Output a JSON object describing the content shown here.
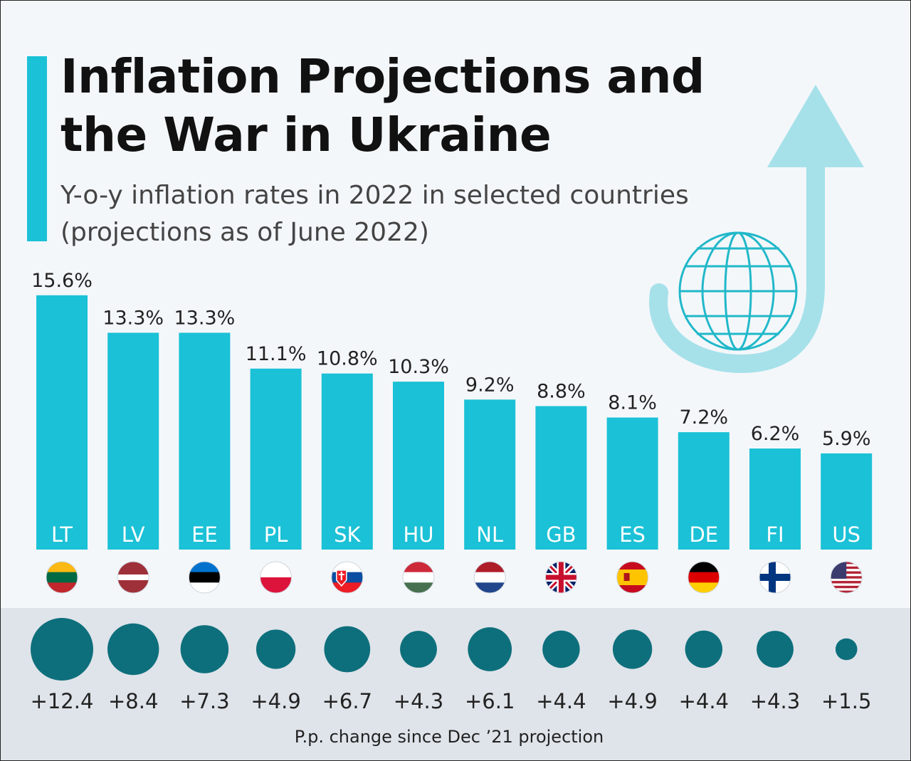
{
  "header": {
    "title": "Inflation Projections and the War in Ukraine",
    "subtitle": "Y-o-y inflation rates in 2022 in selected countries (projections as of June 2022)"
  },
  "footnote": "P.p. change since Dec ’21 projection",
  "colors": {
    "bar": "#1bc1d6",
    "bubble": "#0e6f7c",
    "accent": "#1bc1d6",
    "arrow": "#a6e1ea",
    "globe": "#21b8c9"
  },
  "chart_data": {
    "type": "bar",
    "categories": [
      "LT",
      "LV",
      "EE",
      "PL",
      "SK",
      "HU",
      "NL",
      "GB",
      "ES",
      "DE",
      "FI",
      "US"
    ],
    "series": [
      {
        "values": [
          15.6,
          13.3,
          13.3,
          11.1,
          10.8,
          10.3,
          9.2,
          8.8,
          8.1,
          7.2,
          6.2,
          5.9
        ],
        "labels": [
          "15.6%",
          "13.3%",
          "13.3%",
          "11.1%",
          "10.8%",
          "10.3%",
          "9.2%",
          "8.8%",
          "8.1%",
          "7.2%",
          "6.2%",
          "5.9%"
        ]
      },
      {
        "name": "P.p. change since Dec ’21 projection",
        "values": [
          12.4,
          8.4,
          7.3,
          4.9,
          6.7,
          4.3,
          6.1,
          4.4,
          4.9,
          4.4,
          4.3,
          1.5
        ],
        "labels": [
          "+12.4",
          "+8.4",
          "+7.3",
          "+4.9",
          "+6.7",
          "+4.3",
          "+6.1",
          "+4.4",
          "+4.9",
          "+4.4",
          "+4.3",
          "+1.5"
        ]
      }
    ],
    "flags": [
      "lithuania-flag-icon",
      "latvia-flag-icon",
      "estonia-flag-icon",
      "poland-flag-icon",
      "slovakia-flag-icon",
      "hungary-flag-icon",
      "netherlands-flag-icon",
      "uk-flag-icon",
      "spain-flag-icon",
      "germany-flag-icon",
      "finland-flag-icon",
      "us-flag-icon"
    ],
    "grid": false,
    "legend": "none"
  }
}
